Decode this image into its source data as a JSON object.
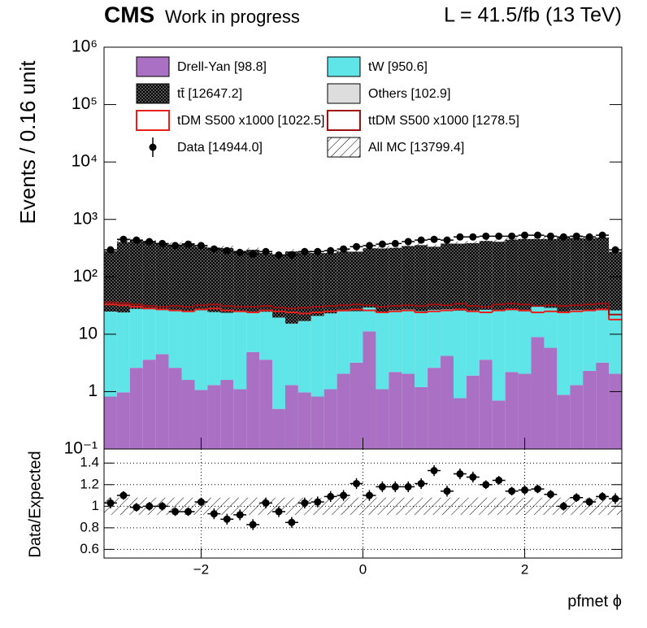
{
  "chart_data": {
    "type": "histogram",
    "experiment": "CMS",
    "status": "Work in progress",
    "lumi_label": "L = 41.5/fb (13 TeV)",
    "ylabel": "Events / 0.16 unit",
    "xlabel": "pfmet ϕ",
    "log_y": true,
    "bins": [
      -3.2,
      -3.04,
      -2.88,
      -2.72,
      -2.56,
      -2.4,
      -2.24,
      -2.08,
      -1.92,
      -1.76,
      -1.6,
      -1.44,
      -1.28,
      -1.12,
      -0.96,
      -0.8,
      -0.64,
      -0.48,
      -0.32,
      -0.16,
      0,
      0.16,
      0.32,
      0.48,
      0.64,
      0.8,
      0.96,
      1.12,
      1.28,
      1.44,
      1.6,
      1.76,
      1.92,
      2.08,
      2.24,
      2.4,
      2.56,
      2.72,
      2.88,
      3.04,
      3.2
    ],
    "xlim": [
      -3.2,
      3.2
    ],
    "xticks": [
      {
        "value": -2,
        "label": "−2"
      },
      0,
      2
    ],
    "ylim": [
      0.1,
      1000000
    ],
    "yticks": [
      {
        "value": 0.1,
        "label": "10⁻¹"
      },
      1,
      10,
      {
        "value": 100,
        "label": "10²"
      },
      {
        "value": 1000,
        "label": "10³"
      },
      {
        "value": 10000,
        "label": "10⁴"
      },
      {
        "value": 100000,
        "label": "10⁵"
      },
      {
        "value": 1000000,
        "label": "10⁶"
      }
    ],
    "series": [
      {
        "name": "Drell-Yan [98.8]",
        "color": "#a970c4",
        "values": [
          0.82,
          0.97,
          2.6,
          3.6,
          4.5,
          2.6,
          1.6,
          1.07,
          1.3,
          1.6,
          1.1,
          4.9,
          3.6,
          0.5,
          1.3,
          0.97,
          0.82,
          1.1,
          2.05,
          3.2,
          11.2,
          1.1,
          2.2,
          2.05,
          1.2,
          2.6,
          4.2,
          0.77,
          1.9,
          3.6,
          0.7,
          2.2,
          2.05,
          8.9,
          5.8,
          0.88,
          1.3,
          2.3,
          3.2,
          2.05
        ]
      },
      {
        "name": "tW [950.6]",
        "color": "#5fe4e8",
        "values": [
          24,
          23,
          25,
          24,
          22,
          23,
          24,
          25,
          23,
          22,
          24,
          20,
          21,
          19,
          14,
          16,
          20,
          22,
          23,
          22,
          18,
          23,
          24,
          25,
          24,
          24,
          23,
          25,
          24,
          23,
          25,
          24,
          23,
          22,
          23,
          24,
          25,
          24,
          23,
          24
        ]
      },
      {
        "name": "tt̄ [12647.2]",
        "color": "#555555",
        "values": [
          256,
          379,
          410,
          380,
          350,
          338,
          359,
          307,
          298,
          294,
          258,
          271,
          237,
          223,
          262,
          247,
          239,
          236,
          249,
          249,
          286,
          287,
          294,
          317,
          332,
          308,
          352,
          352,
          361,
          395,
          383,
          418,
          433,
          423,
          428,
          467,
          443,
          447,
          457,
          247
        ]
      },
      {
        "name": "Others [102.9]",
        "color": "#dddddd",
        "values": [
          2.6,
          2.5,
          2.6,
          2.7,
          2.5,
          2.6,
          2.6,
          2.5,
          2.6,
          2.7,
          2.6,
          2.5,
          2.6,
          2.6,
          2.5,
          2.6,
          2.6,
          2.5,
          2.6,
          2.6,
          2.5,
          2.6,
          2.6,
          2.5,
          2.6,
          2.6,
          2.5,
          2.6,
          2.6,
          2.5,
          2.6,
          2.6,
          2.5,
          2.6,
          2.6,
          2.5,
          2.6,
          2.6,
          2.5,
          2.6
        ]
      }
    ],
    "signals": [
      {
        "name": "tDM S500 x1000 [1022.5]",
        "color": "#e8201c",
        "values": [
          33,
          32,
          30,
          28,
          27,
          26,
          25,
          27,
          28,
          26,
          25,
          24,
          26,
          25,
          24,
          23,
          24,
          25,
          26,
          27,
          26,
          24,
          25,
          26,
          24,
          25,
          26,
          27,
          25,
          24,
          26,
          27,
          26,
          24,
          25,
          24,
          25,
          26,
          27,
          18
        ]
      },
      {
        "name": "ttDM S500 x1000 [1278.5]",
        "color": "#a01010",
        "values": [
          36,
          35,
          33,
          31,
          30,
          31,
          30,
          32,
          33,
          31,
          30,
          30,
          31,
          29,
          28,
          29,
          30,
          31,
          32,
          33,
          32,
          30,
          31,
          32,
          31,
          33,
          32,
          34,
          31,
          30,
          33,
          34,
          33,
          31,
          32,
          31,
          32,
          33,
          34,
          22
        ]
      }
    ],
    "data": {
      "name": "Data [14944.0]",
      "color": "#000000",
      "values": [
        295,
        450,
        436,
        410,
        380,
        350,
        370,
        350,
        305,
        285,
        265,
        250,
        275,
        240,
        240,
        275,
        275,
        285,
        305,
        335,
        350,
        370,
        380,
        410,
        436,
        450,
        436,
        495,
        495,
        510,
        510,
        510,
        530,
        530,
        510,
        495,
        510,
        495,
        530,
        295
      ]
    },
    "mc_band": {
      "name": "All MC [13799.4]",
      "rel_error": 0.08
    },
    "ratio": {
      "ylabel": "Data/Expected",
      "ylim": [
        0.52,
        1.53
      ],
      "yticks": [
        0.6,
        0.8,
        1,
        1.2,
        1.4
      ],
      "grid": true,
      "values": [
        1.03,
        1.1,
        0.99,
        1.0,
        1.0,
        0.95,
        0.95,
        1.04,
        0.93,
        0.88,
        0.92,
        0.83,
        1.03,
        0.95,
        0.85,
        1.03,
        1.04,
        1.09,
        1.1,
        1.21,
        1.1,
        1.18,
        1.18,
        1.18,
        1.21,
        1.33,
        1.14,
        1.3,
        1.27,
        1.2,
        1.24,
        1.14,
        1.15,
        1.16,
        1.11,
        1.0,
        1.08,
        1.04,
        1.09,
        1.07
      ],
      "errors": [
        0.05,
        0.04,
        0.04,
        0.04,
        0.04,
        0.04,
        0.04,
        0.04,
        0.05,
        0.05,
        0.05,
        0.05,
        0.05,
        0.05,
        0.05,
        0.05,
        0.05,
        0.05,
        0.05,
        0.05,
        0.05,
        0.05,
        0.05,
        0.05,
        0.05,
        0.05,
        0.05,
        0.05,
        0.05,
        0.04,
        0.04,
        0.04,
        0.04,
        0.04,
        0.04,
        0.04,
        0.04,
        0.04,
        0.04,
        0.05
      ]
    }
  }
}
